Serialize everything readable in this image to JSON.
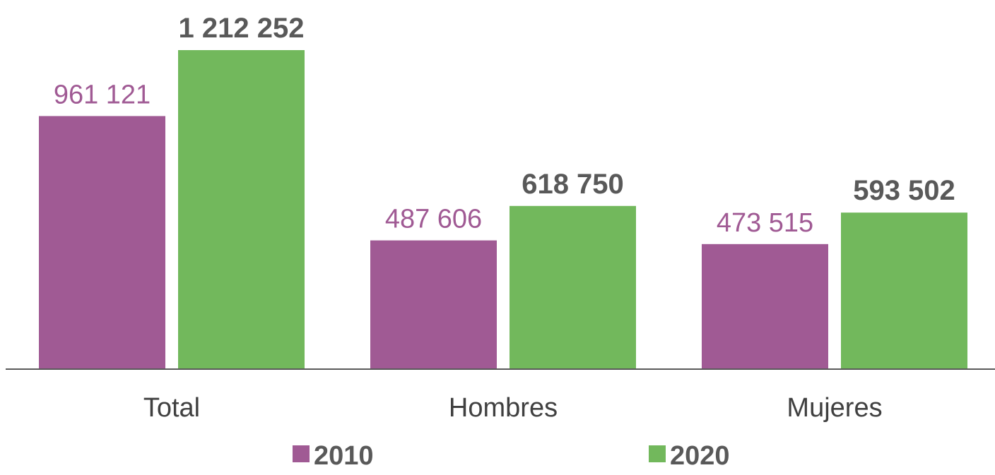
{
  "chart_data": {
    "type": "bar",
    "categories": [
      "Total",
      "Hombres",
      "Mujeres"
    ],
    "series": [
      {
        "name": "2010",
        "values": [
          961121,
          487606,
          473515
        ],
        "labels": [
          "961 121",
          "487 606",
          "473 515"
        ],
        "color": "#A05A94"
      },
      {
        "name": "2020",
        "values": [
          1212252,
          618750,
          593502
        ],
        "labels": [
          "1 212 252",
          "618 750",
          "593 502"
        ],
        "color": "#72B85C"
      }
    ],
    "title": "",
    "xlabel": "",
    "ylabel": "",
    "ylim": [
      0,
      1212252
    ],
    "grid": false,
    "legend": "bottom",
    "colors": {
      "label_2010": "#A05A94",
      "label_2020": "#595959",
      "axis": "#595959",
      "category_text": "#404040"
    }
  }
}
